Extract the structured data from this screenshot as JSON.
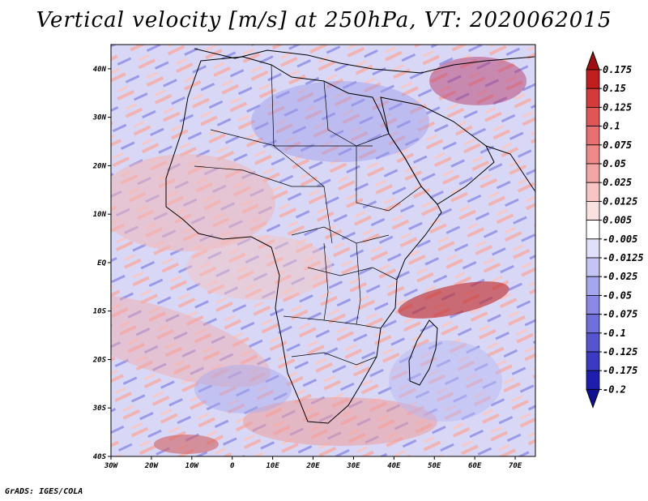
{
  "title": "Vertical velocity [m/s] at 250hPa, VT: 2020062015",
  "footer": "GrADS: IGES/COLA",
  "map": {
    "lon_range": [
      -30,
      75
    ],
    "lat_range": [
      -40,
      45
    ],
    "lat_ticks": [
      {
        "value": 40,
        "label": "40N"
      },
      {
        "value": 30,
        "label": "30N"
      },
      {
        "value": 20,
        "label": "20N"
      },
      {
        "value": 10,
        "label": "10N"
      },
      {
        "value": 0,
        "label": "EQ"
      },
      {
        "value": -10,
        "label": "10S"
      },
      {
        "value": -20,
        "label": "20S"
      },
      {
        "value": -30,
        "label": "30S"
      },
      {
        "value": -40,
        "label": "40S"
      }
    ],
    "lon_ticks": [
      {
        "value": -30,
        "label": "30W"
      },
      {
        "value": -20,
        "label": "20W"
      },
      {
        "value": -10,
        "label": "10W"
      },
      {
        "value": 0,
        "label": "0"
      },
      {
        "value": 10,
        "label": "10E"
      },
      {
        "value": 20,
        "label": "20E"
      },
      {
        "value": 30,
        "label": "30E"
      },
      {
        "value": 40,
        "label": "40E"
      },
      {
        "value": 50,
        "label": "50E"
      },
      {
        "value": 60,
        "label": "60E"
      },
      {
        "value": 70,
        "label": "70E"
      }
    ]
  },
  "colorbar": {
    "labels": [
      "0.175",
      "0.15",
      "0.125",
      "0.1",
      "0.075",
      "0.05",
      "0.025",
      "0.0125",
      "0.005",
      "-0.005",
      "-0.0125",
      "-0.025",
      "-0.05",
      "-0.075",
      "-0.1",
      "-0.125",
      "-0.175",
      "-0.2"
    ],
    "colors": [
      "#a00f0f",
      "#c21e1e",
      "#d43a3a",
      "#e05555",
      "#e87070",
      "#ef8a8a",
      "#f4a6a6",
      "#f8c4c4",
      "#fbe0e0",
      "#ffffff",
      "#e0e0fb",
      "#c4c4f5",
      "#a6a6ee",
      "#8a8ae6",
      "#7070dc",
      "#5555d0",
      "#3a3ac2",
      "#1e1eae",
      "#0f0f96"
    ]
  }
}
